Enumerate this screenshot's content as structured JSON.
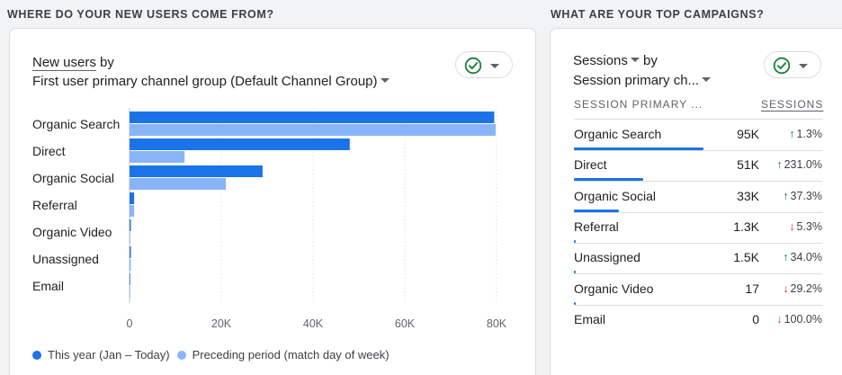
{
  "left": {
    "heading": "WHERE DO YOUR NEW USERS COME FROM?",
    "metric_label": "New users",
    "by_label": "by",
    "dimension_label": "First user primary channel group (Default Channel Group)"
  },
  "right": {
    "heading": "WHAT ARE YOUR TOP CAMPAIGNS?",
    "metric_label": "Sessions",
    "by_label": "by",
    "dimension_label": "Session primary ch...",
    "col_channel": "SESSION PRIMARY ...",
    "col_sessions": "SESSIONS",
    "rows": [
      {
        "name": "Organic Search",
        "value": "95K",
        "change": "1.3%",
        "dir": "up",
        "share": 1.0
      },
      {
        "name": "Direct",
        "value": "51K",
        "change": "231.0%",
        "dir": "up",
        "share": 0.537
      },
      {
        "name": "Organic Social",
        "value": "33K",
        "change": "37.3%",
        "dir": "up",
        "share": 0.347
      },
      {
        "name": "Referral",
        "value": "1.3K",
        "change": "5.3%",
        "dir": "down",
        "share": 0.014
      },
      {
        "name": "Unassigned",
        "value": "1.5K",
        "change": "34.0%",
        "dir": "up",
        "share": 0.016
      },
      {
        "name": "Organic Video",
        "value": "17",
        "change": "29.2%",
        "dir": "down",
        "share": 0.0002
      },
      {
        "name": "Email",
        "value": "0",
        "change": "100.0%",
        "dir": "down",
        "share": 0
      }
    ]
  },
  "colors": {
    "this_year": "#1a73e8",
    "preceding": "#8ab4f8",
    "up": "#188038",
    "down": "#d93025",
    "check": "#188038"
  },
  "icons": {
    "check": "check-circle-icon",
    "caret": "caret-down-icon",
    "up": "arrow-up-icon",
    "down": "arrow-down-icon"
  },
  "chart_data": {
    "type": "bar",
    "orientation": "horizontal",
    "categories": [
      "Organic Search",
      "Direct",
      "Organic Social",
      "Referral",
      "Organic Video",
      "Unassigned",
      "Email"
    ],
    "series": [
      {
        "name": "This year (Jan – Today)",
        "values": [
          79500,
          48000,
          29000,
          1000,
          80,
          50,
          0
        ]
      },
      {
        "name": "Preceding period (match day of week)",
        "values": [
          79800,
          12000,
          21000,
          1000,
          0,
          60,
          0
        ]
      }
    ],
    "xticks": [
      "0",
      "20K",
      "40K",
      "60K",
      "80K"
    ],
    "xlim": [
      0,
      80000
    ],
    "grid": true,
    "legend": "bottom-left"
  }
}
